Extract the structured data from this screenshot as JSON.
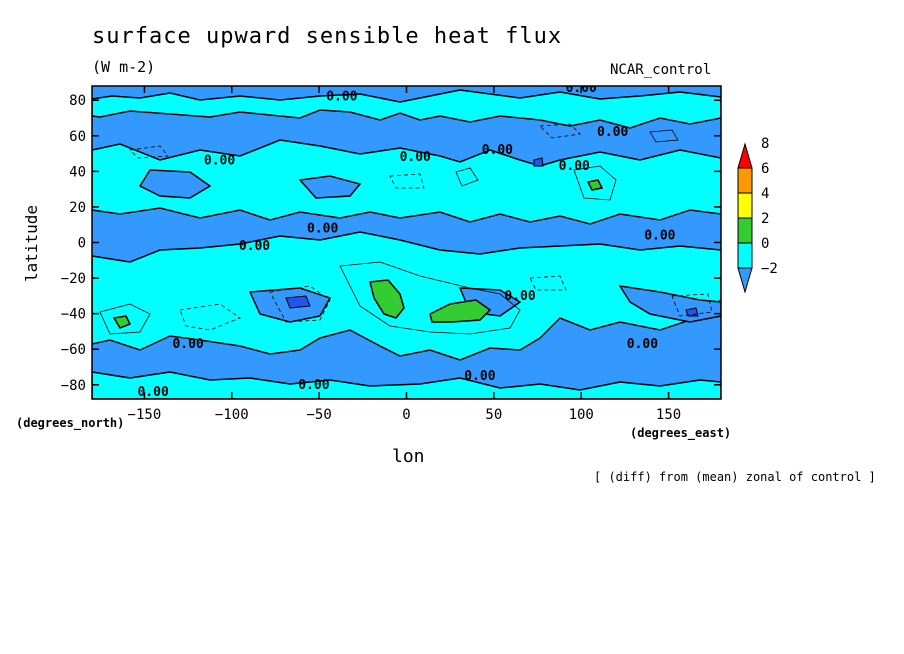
{
  "chart_data": {
    "type": "heatmap",
    "title": "surface upward sensible heat flux",
    "units": "(W m-2)",
    "dataset": "NCAR_control",
    "xlabel": "lon",
    "ylabel": "latitude",
    "x_units_label": "(degrees_east)",
    "y_units_label": "(degrees_north)",
    "note": "[ (diff) from (mean) zonal of control ]",
    "xlim": [
      -180,
      180
    ],
    "ylim": [
      -88,
      88
    ],
    "x_ticks": [
      -150,
      -100,
      -50,
      0,
      50,
      100,
      150
    ],
    "y_ticks": [
      80,
      60,
      40,
      20,
      0,
      -20,
      -40,
      -60,
      -80
    ],
    "contour_labels": [
      {
        "text": "0.00",
        "lon": -37,
        "lat": 82
      },
      {
        "text": "0.00",
        "lon": 100,
        "lat": 87
      },
      {
        "text": "0.00",
        "lon": 118,
        "lat": 62
      },
      {
        "text": "0.00",
        "lon": -107,
        "lat": 46
      },
      {
        "text": "0.00",
        "lon": 5,
        "lat": 48
      },
      {
        "text": "0.00",
        "lon": 52,
        "lat": 52
      },
      {
        "text": "0.00",
        "lon": 96,
        "lat": 43
      },
      {
        "text": "0.00",
        "lon": -48,
        "lat": 8
      },
      {
        "text": "0.00",
        "lon": -87,
        "lat": -2
      },
      {
        "text": "0.00",
        "lon": 145,
        "lat": 4
      },
      {
        "text": "0.00",
        "lon": 65,
        "lat": -30
      },
      {
        "text": "0.00",
        "lon": -125,
        "lat": -57
      },
      {
        "text": "0.00",
        "lon": 135,
        "lat": -57
      },
      {
        "text": "0.00",
        "lon": 42,
        "lat": -75
      },
      {
        "text": "0.00",
        "lon": -53,
        "lat": -80
      },
      {
        "text": "0.00",
        "lon": -145,
        "lat": -84
      }
    ],
    "colorbar": {
      "levels": [
        -2,
        0,
        2,
        4,
        6,
        8
      ],
      "colors": [
        "#3399ff",
        "#00ffff",
        "#33cc33",
        "#ffff00",
        "#ff9900",
        "#ff0000"
      ]
    }
  }
}
